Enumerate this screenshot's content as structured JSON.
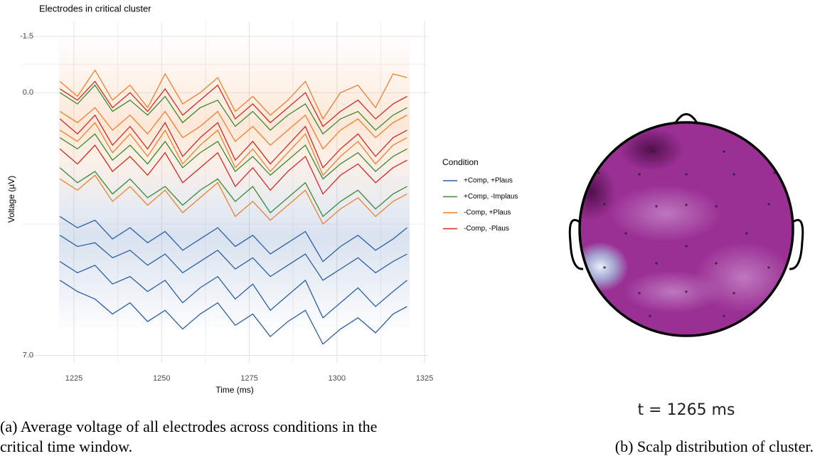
{
  "chart_data": {
    "type": "line",
    "title": "Electrodes in critical cluster",
    "xlabel": "Time (ms)",
    "ylabel": "Voltage (µV)",
    "legend_title": "Condition",
    "x": [
      1221,
      1226,
      1231,
      1236,
      1241,
      1246,
      1251,
      1256,
      1261,
      1266,
      1271,
      1276,
      1281,
      1286,
      1291,
      1296,
      1301,
      1306,
      1311,
      1316,
      1320
    ],
    "xlim": [
      1210,
      1326
    ],
    "xticks": [
      1225,
      1250,
      1275,
      1300,
      1325
    ],
    "x_minor_ticks": [
      1237.5,
      1262.5,
      1287.5,
      1312.5
    ],
    "ylim": [
      7.2,
      -1.9
    ],
    "yticks": [
      -1.5,
      {
        "value": 0,
        "label": "0.0"
      },
      {
        "value": 7,
        "label": "7.0"
      }
    ],
    "y_minor_ticks": [
      -0.75,
      3.5
    ],
    "grid": true,
    "series": [
      {
        "name": "+Comp, +Plaus",
        "color": "#2c5fa8",
        "values": [
          [
            3.8,
            4.1,
            4.0,
            4.4,
            4.2,
            4.6,
            4.3,
            4.8,
            4.5,
            4.2,
            4.7,
            4.4,
            4.9,
            4.6,
            4.3,
            5.0,
            4.7,
            4.4,
            4.8,
            4.5,
            4.3
          ],
          [
            4.5,
            4.8,
            4.6,
            5.1,
            4.9,
            5.3,
            5.0,
            5.6,
            5.2,
            4.9,
            5.5,
            5.1,
            5.8,
            5.4,
            5.0,
            6.0,
            5.6,
            5.2,
            5.7,
            5.3,
            5.0
          ],
          [
            3.3,
            3.6,
            3.4,
            3.9,
            3.6,
            4.0,
            3.7,
            4.2,
            3.9,
            3.6,
            4.1,
            3.8,
            4.3,
            4.0,
            3.7,
            4.5,
            4.1,
            3.8,
            4.2,
            3.9,
            3.6
          ],
          [
            5.0,
            5.3,
            5.5,
            5.9,
            5.6,
            6.1,
            5.8,
            6.3,
            5.9,
            5.6,
            6.2,
            5.9,
            6.5,
            6.1,
            5.8,
            6.7,
            6.3,
            6.0,
            6.4,
            5.9,
            5.7
          ]
        ]
      },
      {
        "name": "+Comp, -Implaus",
        "color": "#3a8a2e",
        "values": [
          [
            0.0,
            0.3,
            -0.2,
            0.5,
            0.2,
            0.6,
            0.1,
            0.8,
            0.4,
            0.2,
            0.9,
            0.5,
            1.0,
            0.6,
            0.3,
            1.1,
            0.7,
            0.5,
            1.0,
            0.6,
            0.4
          ],
          [
            2.0,
            2.4,
            2.1,
            2.7,
            2.3,
            2.8,
            2.5,
            3.0,
            2.6,
            2.3,
            2.9,
            2.5,
            3.2,
            2.8,
            2.4,
            3.3,
            2.9,
            2.6,
            3.1,
            2.7,
            2.5
          ],
          [
            1.2,
            1.5,
            1.1,
            1.8,
            1.4,
            1.9,
            1.3,
            2.0,
            1.6,
            1.3,
            2.1,
            1.7,
            2.2,
            1.8,
            1.4,
            2.3,
            1.9,
            1.6,
            2.1,
            1.7,
            1.5
          ]
        ]
      },
      {
        "name": "-Comp, +Plaus",
        "color": "#f07f2a",
        "values": [
          [
            -0.3,
            0.1,
            -0.6,
            0.2,
            -0.2,
            0.4,
            -0.5,
            0.3,
            0.0,
            -0.4,
            0.5,
            0.1,
            0.6,
            0.2,
            -0.3,
            0.7,
            0.0,
            -0.2,
            0.4,
            -0.5,
            -0.4
          ],
          [
            1.0,
            1.3,
            0.8,
            1.6,
            1.1,
            1.7,
            1.0,
            1.9,
            1.4,
            1.0,
            2.0,
            1.5,
            2.1,
            1.6,
            1.1,
            2.2,
            1.7,
            1.3,
            1.9,
            1.4,
            1.2
          ],
          [
            0.5,
            0.8,
            0.4,
            1.0,
            0.6,
            1.1,
            0.5,
            1.2,
            0.9,
            0.5,
            1.3,
            0.9,
            1.4,
            1.0,
            0.6,
            1.5,
            1.0,
            0.7,
            1.2,
            0.8,
            0.6
          ],
          [
            2.3,
            2.6,
            2.2,
            2.9,
            2.5,
            3.0,
            2.6,
            3.2,
            2.8,
            2.4,
            3.3,
            2.9,
            3.4,
            3.0,
            2.6,
            3.5,
            3.1,
            2.8,
            3.3,
            2.9,
            2.7
          ]
        ]
      },
      {
        "name": "-Comp, -Plaus",
        "color": "#d02a22",
        "values": [
          [
            -0.1,
            0.2,
            -0.3,
            0.4,
            0.0,
            0.5,
            -0.1,
            0.6,
            0.2,
            -0.2,
            0.7,
            0.3,
            0.8,
            0.4,
            0.0,
            0.9,
            0.5,
            0.2,
            0.7,
            0.3,
            0.1
          ],
          [
            0.7,
            1.1,
            0.6,
            1.4,
            0.9,
            1.5,
            0.8,
            1.7,
            1.2,
            0.8,
            1.8,
            1.3,
            1.9,
            1.4,
            0.9,
            2.0,
            1.5,
            1.1,
            1.7,
            1.2,
            1.0
          ],
          [
            1.5,
            1.9,
            1.4,
            2.1,
            1.7,
            2.2,
            1.6,
            2.4,
            2.0,
            1.6,
            2.5,
            2.0,
            2.6,
            2.1,
            1.7,
            2.7,
            2.2,
            1.9,
            2.4,
            2.0,
            1.8
          ]
        ]
      }
    ]
  },
  "topomap": {
    "label": "t = 1265 ms"
  },
  "captions": {
    "a": [
      "(a) Average voltage of all electrodes across conditions in the",
      "critical time window."
    ],
    "b": "(b) Scalp distribution of cluster."
  }
}
